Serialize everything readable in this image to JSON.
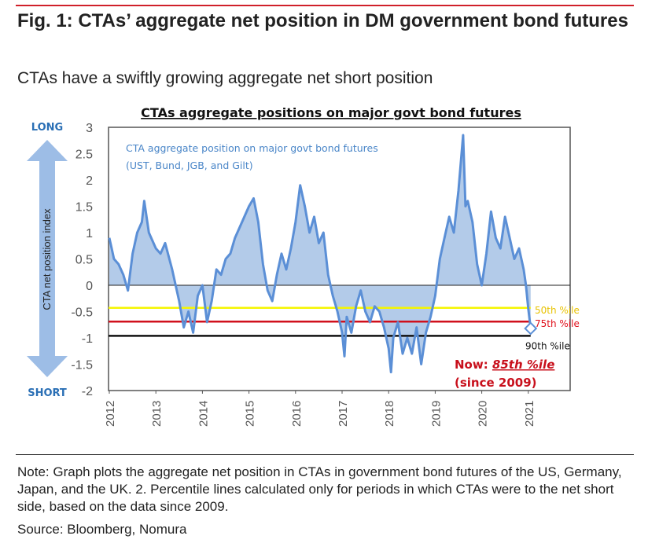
{
  "header": {
    "title": "Fig. 1: CTAs’ aggregate net position in DM government bond futures",
    "subtitle": "CTAs have a swiftly growing aggregate net short position"
  },
  "chart_data": {
    "type": "area",
    "title": "CTAs  aggregate positions on major govt bond futures",
    "legend_text": [
      "CTA aggregate position on major govt bond futures",
      "(UST, Bund, JGB, and Gilt)"
    ],
    "ylabel": "CTA net position index",
    "ylim": [
      -2,
      3
    ],
    "yticks": [
      "3",
      "2.5",
      "2",
      "1.5",
      "1",
      "0.5",
      "0",
      "-0.5",
      "-1",
      "-1.5",
      "-2"
    ],
    "xlim": [
      2012,
      2021.9
    ],
    "xticks": [
      "2012",
      "2013",
      "2014",
      "2015",
      "2016",
      "2017",
      "2018",
      "2019",
      "2020",
      "2021"
    ],
    "arrow_labels": {
      "top": "LONG",
      "bottom": "SHORT"
    },
    "series": [
      {
        "color": "#5b8fd6",
        "fill": "#b3cbe9",
        "x": [
          2012.0,
          2012.05,
          2012.1,
          2012.2,
          2012.3,
          2012.4,
          2012.5,
          2012.6,
          2012.7,
          2012.75,
          2012.85,
          2013.0,
          2013.1,
          2013.2,
          2013.35,
          2013.5,
          2013.6,
          2013.7,
          2013.8,
          2013.9,
          2014.0,
          2014.1,
          2014.2,
          2014.3,
          2014.4,
          2014.5,
          2014.6,
          2014.7,
          2014.8,
          2014.9,
          2015.0,
          2015.1,
          2015.2,
          2015.3,
          2015.4,
          2015.5,
          2015.6,
          2015.7,
          2015.8,
          2015.9,
          2016.0,
          2016.1,
          2016.2,
          2016.3,
          2016.4,
          2016.5,
          2016.6,
          2016.7,
          2016.8,
          2016.9,
          2017.0,
          2017.05,
          2017.1,
          2017.2,
          2017.3,
          2017.4,
          2017.5,
          2017.6,
          2017.7,
          2017.8,
          2017.9,
          2018.0,
          2018.05,
          2018.1,
          2018.2,
          2018.3,
          2018.4,
          2018.5,
          2018.6,
          2018.7,
          2018.8,
          2018.9,
          2019.0,
          2019.1,
          2019.2,
          2019.3,
          2019.4,
          2019.5,
          2019.6,
          2019.65,
          2019.7,
          2019.8,
          2019.9,
          2020.0,
          2020.1,
          2020.2,
          2020.3,
          2020.4,
          2020.5,
          2020.6,
          2020.7,
          2020.8,
          2020.9,
          2020.95,
          2021.0,
          2021.05
        ],
        "y": [
          0.9,
          0.7,
          0.5,
          0.4,
          0.2,
          -0.1,
          0.6,
          1.0,
          1.2,
          1.6,
          1.0,
          0.7,
          0.6,
          0.8,
          0.3,
          -0.3,
          -0.8,
          -0.5,
          -0.9,
          -0.2,
          0.0,
          -0.7,
          -0.3,
          0.3,
          0.2,
          0.5,
          0.6,
          0.9,
          1.1,
          1.3,
          1.5,
          1.65,
          1.2,
          0.4,
          -0.1,
          -0.3,
          0.2,
          0.6,
          0.3,
          0.7,
          1.2,
          1.9,
          1.5,
          1.0,
          1.3,
          0.8,
          1.0,
          0.2,
          -0.2,
          -0.5,
          -0.9,
          -1.35,
          -0.6,
          -0.9,
          -0.4,
          -0.1,
          -0.5,
          -0.7,
          -0.4,
          -0.5,
          -0.8,
          -1.2,
          -1.65,
          -1.0,
          -0.7,
          -1.3,
          -1.0,
          -1.3,
          -0.8,
          -1.5,
          -0.9,
          -0.6,
          -0.2,
          0.5,
          0.9,
          1.3,
          1.0,
          1.8,
          2.85,
          1.5,
          1.6,
          1.2,
          0.4,
          0.0,
          0.6,
          1.4,
          0.9,
          0.7,
          1.3,
          0.9,
          0.5,
          0.7,
          0.3,
          0.0,
          -0.45,
          -0.82
        ]
      }
    ],
    "reference_lines": [
      {
        "label": "50th %ile",
        "value": -0.43,
        "color": "#f5f500",
        "label_color": "#e8c200"
      },
      {
        "label": "75th %ile",
        "value": -0.69,
        "color": "#d0101c",
        "label_color": "#e0101c"
      },
      {
        "label": "90th %ile",
        "value": -0.96,
        "color": "#111111",
        "label_color": "#111111"
      }
    ],
    "annotation": {
      "prefix": "Now: ",
      "highlight": "85th %ile",
      "line2": "(since 2009)",
      "color": "#c8101c"
    }
  },
  "footer": {
    "note": "Note: Graph plots the aggregate net position in CTAs in government bond futures of the US, Germany, Japan, and the UK. 2. Percentile lines calculated only for periods in which CTAs were to the net short side, based on the data since 2009.",
    "source": "Source: Bloomberg, Nomura"
  }
}
